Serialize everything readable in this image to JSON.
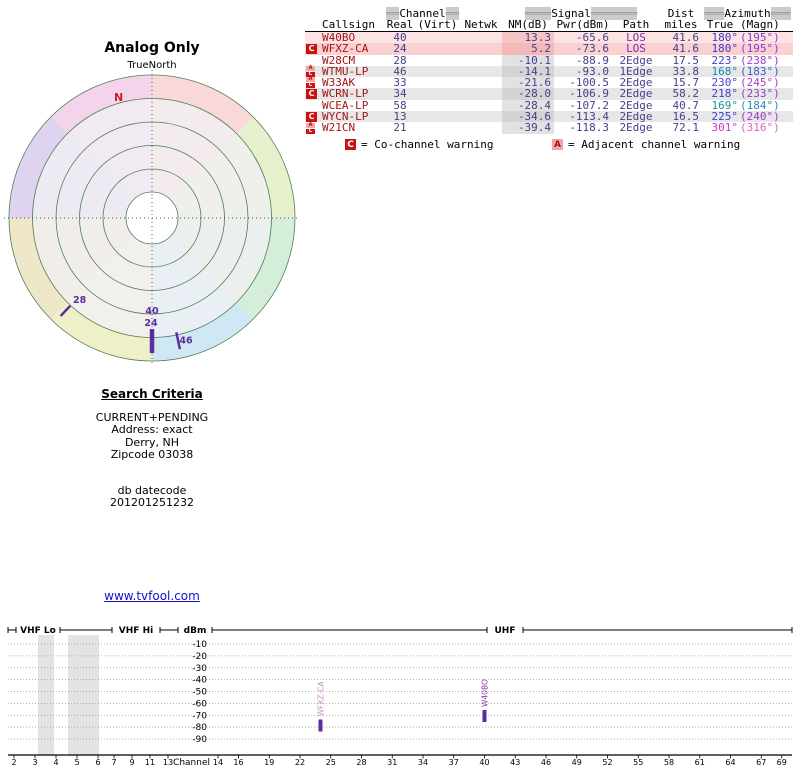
{
  "polar": {
    "title": "Analog Only",
    "north_label": "TrueNorth",
    "magnetic_north_label": "N",
    "wedge_colors": [
      "#f8d8d8",
      "#e6f0cc",
      "#d4eeda",
      "#d0e8f4",
      "#eff0c8",
      "#efe7c9",
      "#ded4f0",
      "#f3d4ea"
    ],
    "grid_color": "#4f7d55",
    "marker_color": "#5b2da0",
    "north_color": "#cc2222",
    "markers": [
      {
        "channel": "28",
        "azimuth_deg": 223
      },
      {
        "channel": "40",
        "azimuth_deg": 180
      },
      {
        "channel": "24",
        "azimuth_deg": 180
      },
      {
        "channel": "46",
        "azimuth_deg": 168
      }
    ]
  },
  "criteria": {
    "title": "Search Criteria",
    "mode": "CURRENT+PENDING",
    "address": "Address: exact",
    "city": "Derry, NH",
    "zipcode": "Zipcode 03038",
    "db_label": "db datecode",
    "db_code": "201201251232"
  },
  "link": {
    "text": "www.tvfool.com"
  },
  "table": {
    "header_groups": {
      "channel": {
        "pre": "══",
        "label": "Channel",
        "post": "══"
      },
      "signal": {
        "pre": "════",
        "label": "Signal",
        "post": "═══════"
      },
      "dist": "Dist",
      "azimuth": {
        "pre": "═══",
        "label": "Azimuth",
        "post": "═══"
      }
    },
    "columns": [
      "Callsign",
      "Real",
      "(Virt)",
      "Netwk",
      "NM(dB)",
      "Pwr(dBm)",
      "Path",
      "miles",
      "True",
      "(Magn)"
    ],
    "colors": {
      "callsign": "#a31515",
      "value": "#44408c",
      "los": "#7a2fb0",
      "edge": "#44408c"
    },
    "rows": [
      {
        "badges": [],
        "callsign": "W40BO",
        "real": "40",
        "virt": "",
        "netwk": "",
        "nm": "13.3",
        "pwr": "-65.6",
        "path": "LOS",
        "miles": "41.6",
        "true": "180°",
        "magn": "(195°)",
        "row_bg": "#fce4e4",
        "nm_bg": "#f5c6c6",
        "true_color": "#3c3cc8",
        "magn_color": "#8a3cd0"
      },
      {
        "badges": [
          "C"
        ],
        "callsign": "WFXZ-CA",
        "real": "24",
        "virt": "",
        "netwk": "",
        "nm": "5.2",
        "pwr": "-73.6",
        "path": "LOS",
        "miles": "41.6",
        "true": "180°",
        "magn": "(195°)",
        "row_bg": "#fbd0d0",
        "nm_bg": "#f5b8b8",
        "true_color": "#3c3cc8",
        "magn_color": "#8a3cd0"
      },
      {
        "badges": [],
        "callsign": "W28CM",
        "real": "28",
        "virt": "",
        "netwk": "",
        "nm": "-10.1",
        "pwr": "-88.9",
        "path": "2Edge",
        "miles": "17.5",
        "true": "223°",
        "magn": "(238°)",
        "row_bg": "#ffffff",
        "nm_bg": "#e2e2e2",
        "true_color": "#433cc8",
        "magn_color": "#9a3cc8"
      },
      {
        "badges": [
          "A",
          "C"
        ],
        "callsign": "WTMU-LP",
        "real": "46",
        "virt": "",
        "netwk": "",
        "nm": "-14.1",
        "pwr": "-93.0",
        "path": "1Edge",
        "miles": "33.8",
        "true": "168°",
        "magn": "(183°)",
        "row_bg": "#e7e7e7",
        "nm_bg": "#d4d4d4",
        "true_color": "#1c86aa",
        "magn_color": "#3c5cd0"
      },
      {
        "badges": [
          "A",
          "C"
        ],
        "callsign": "W33AK",
        "real": "33",
        "virt": "",
        "netwk": "",
        "nm": "-21.6",
        "pwr": "-100.5",
        "path": "2Edge",
        "miles": "15.7",
        "true": "230°",
        "magn": "(245°)",
        "row_bg": "#ffffff",
        "nm_bg": "#e2e2e2",
        "true_color": "#4c3cd0",
        "magn_color": "#aa3cc8"
      },
      {
        "badges": [
          "C"
        ],
        "callsign": "WCRN-LP",
        "real": "34",
        "virt": "",
        "netwk": "",
        "nm": "-28.0",
        "pwr": "-106.9",
        "path": "2Edge",
        "miles": "58.2",
        "true": "218°",
        "magn": "(233°)",
        "row_bg": "#e7e7e7",
        "nm_bg": "#d4d4d4",
        "true_color": "#3c3cd0",
        "magn_color": "#943cc8"
      },
      {
        "badges": [],
        "callsign": "WCEA-LP",
        "real": "58",
        "virt": "",
        "netwk": "",
        "nm": "-28.4",
        "pwr": "-107.2",
        "path": "2Edge",
        "miles": "40.7",
        "true": "169°",
        "magn": "(184°)",
        "row_bg": "#ffffff",
        "nm_bg": "#e2e2e2",
        "true_color": "#16988a",
        "magn_color": "#2c88bc"
      },
      {
        "badges": [
          "C"
        ],
        "callsign": "WYCN-LP",
        "real": "13",
        "virt": "",
        "netwk": "",
        "nm": "-34.6",
        "pwr": "-113.4",
        "path": "2Edge",
        "miles": "16.5",
        "true": "225°",
        "magn": "(240°)",
        "row_bg": "#e7e7e7",
        "nm_bg": "#d4d4d4",
        "true_color": "#3c3cd0",
        "magn_color": "#9a3cc8"
      },
      {
        "badges": [
          "A",
          "C"
        ],
        "callsign": "W21CN",
        "real": "21",
        "virt": "",
        "netwk": "",
        "nm": "-39.4",
        "pwr": "-118.3",
        "path": "2Edge",
        "miles": "72.1",
        "true": "301°",
        "magn": "(316°)",
        "row_bg": "#ffffff",
        "nm_bg": "#e2e2e2",
        "true_color": "#c838c8",
        "magn_color": "#e062c2"
      }
    ],
    "legend": [
      {
        "badge": "C",
        "text": "= Co-channel warning"
      },
      {
        "badge": "A",
        "text": "= Adjacent channel warning"
      }
    ]
  },
  "spectrum": {
    "band_labels": {
      "vhf_lo": "VHF Lo",
      "vhf_hi": "VHF Hi",
      "uhf": "UHF"
    },
    "y_axis_label": "dBm",
    "x_axis_label": "Channel",
    "dbm_ticks": [
      -10,
      -20,
      -30,
      -40,
      -50,
      -60,
      -70,
      -80,
      -90
    ],
    "vhf_channel_ticks": [
      2,
      3,
      4,
      5,
      6,
      7,
      9,
      11,
      13
    ],
    "uhf_channel_ticks": [
      14,
      16,
      19,
      22,
      25,
      28,
      31,
      34,
      37,
      40,
      43,
      46,
      49,
      52,
      55,
      58,
      61,
      64,
      67,
      69
    ],
    "shaded_channels": [
      "4",
      "5-6"
    ],
    "signals": [
      {
        "callsign": "WFXZ-CA",
        "channel": 24,
        "pwr_dbm": -73.6,
        "label_color": "#c490c4",
        "bar_color": "#5b2da0"
      },
      {
        "callsign": "W40BO",
        "channel": 40,
        "pwr_dbm": -65.6,
        "label_color": "#8a3a9a",
        "bar_color": "#5b2da0"
      }
    ]
  },
  "chart_data": [
    {
      "type": "scatter",
      "subtype": "polar-azimuth",
      "title": "Analog Only",
      "orientation": "TrueNorth up, magnetic N offset ~-15°",
      "points": [
        {
          "label": "28",
          "azimuth_true_deg": 223
        },
        {
          "label": "40",
          "azimuth_true_deg": 180
        },
        {
          "label": "24",
          "azimuth_true_deg": 180
        },
        {
          "label": "46",
          "azimuth_true_deg": 168
        }
      ]
    },
    {
      "type": "bar",
      "title": "RF channel spectrum",
      "xlabel": "Channel",
      "ylabel": "dBm",
      "ylim": [
        -90,
        -10
      ],
      "x_bands": [
        {
          "label": "VHF Lo",
          "channels": [
            2,
            6
          ]
        },
        {
          "label": "VHF Hi",
          "channels": [
            7,
            13
          ]
        },
        {
          "label": "UHF",
          "channels": [
            14,
            69
          ]
        }
      ],
      "series": [
        {
          "name": "WFXZ-CA",
          "x": 24,
          "y": -73.6
        },
        {
          "name": "W40BO",
          "x": 40,
          "y": -65.6
        }
      ]
    },
    {
      "type": "table",
      "columns": [
        "Callsign",
        "Real",
        "(Virt)",
        "Netwk",
        "NM(dB)",
        "Pwr(dBm)",
        "Path",
        "miles",
        "True",
        "(Magn)"
      ],
      "rows": [
        [
          "W40BO",
          "40",
          "",
          "",
          "13.3",
          "-65.6",
          "LOS",
          "41.6",
          "180°",
          "(195°)"
        ],
        [
          "WFXZ-CA",
          "24",
          "",
          "",
          "5.2",
          "-73.6",
          "LOS",
          "41.6",
          "180°",
          "(195°)"
        ],
        [
          "W28CM",
          "28",
          "",
          "",
          "-10.1",
          "-88.9",
          "2Edge",
          "17.5",
          "223°",
          "(238°)"
        ],
        [
          "WTMU-LP",
          "46",
          "",
          "",
          "-14.1",
          "-93.0",
          "1Edge",
          "33.8",
          "168°",
          "(183°)"
        ],
        [
          "W33AK",
          "33",
          "",
          "",
          "-21.6",
          "-100.5",
          "2Edge",
          "15.7",
          "230°",
          "(245°)"
        ],
        [
          "WCRN-LP",
          "34",
          "",
          "",
          "-28.0",
          "-106.9",
          "2Edge",
          "58.2",
          "218°",
          "(233°)"
        ],
        [
          "WCEA-LP",
          "58",
          "",
          "",
          "-28.4",
          "-107.2",
          "2Edge",
          "40.7",
          "169°",
          "(184°)"
        ],
        [
          "WYCN-LP",
          "13",
          "",
          "",
          "-34.6",
          "-113.4",
          "2Edge",
          "16.5",
          "225°",
          "(240°)"
        ],
        [
          "W21CN",
          "21",
          "",
          "",
          "-39.4",
          "-118.3",
          "2Edge",
          "72.1",
          "301°",
          "(316°)"
        ]
      ]
    }
  ]
}
